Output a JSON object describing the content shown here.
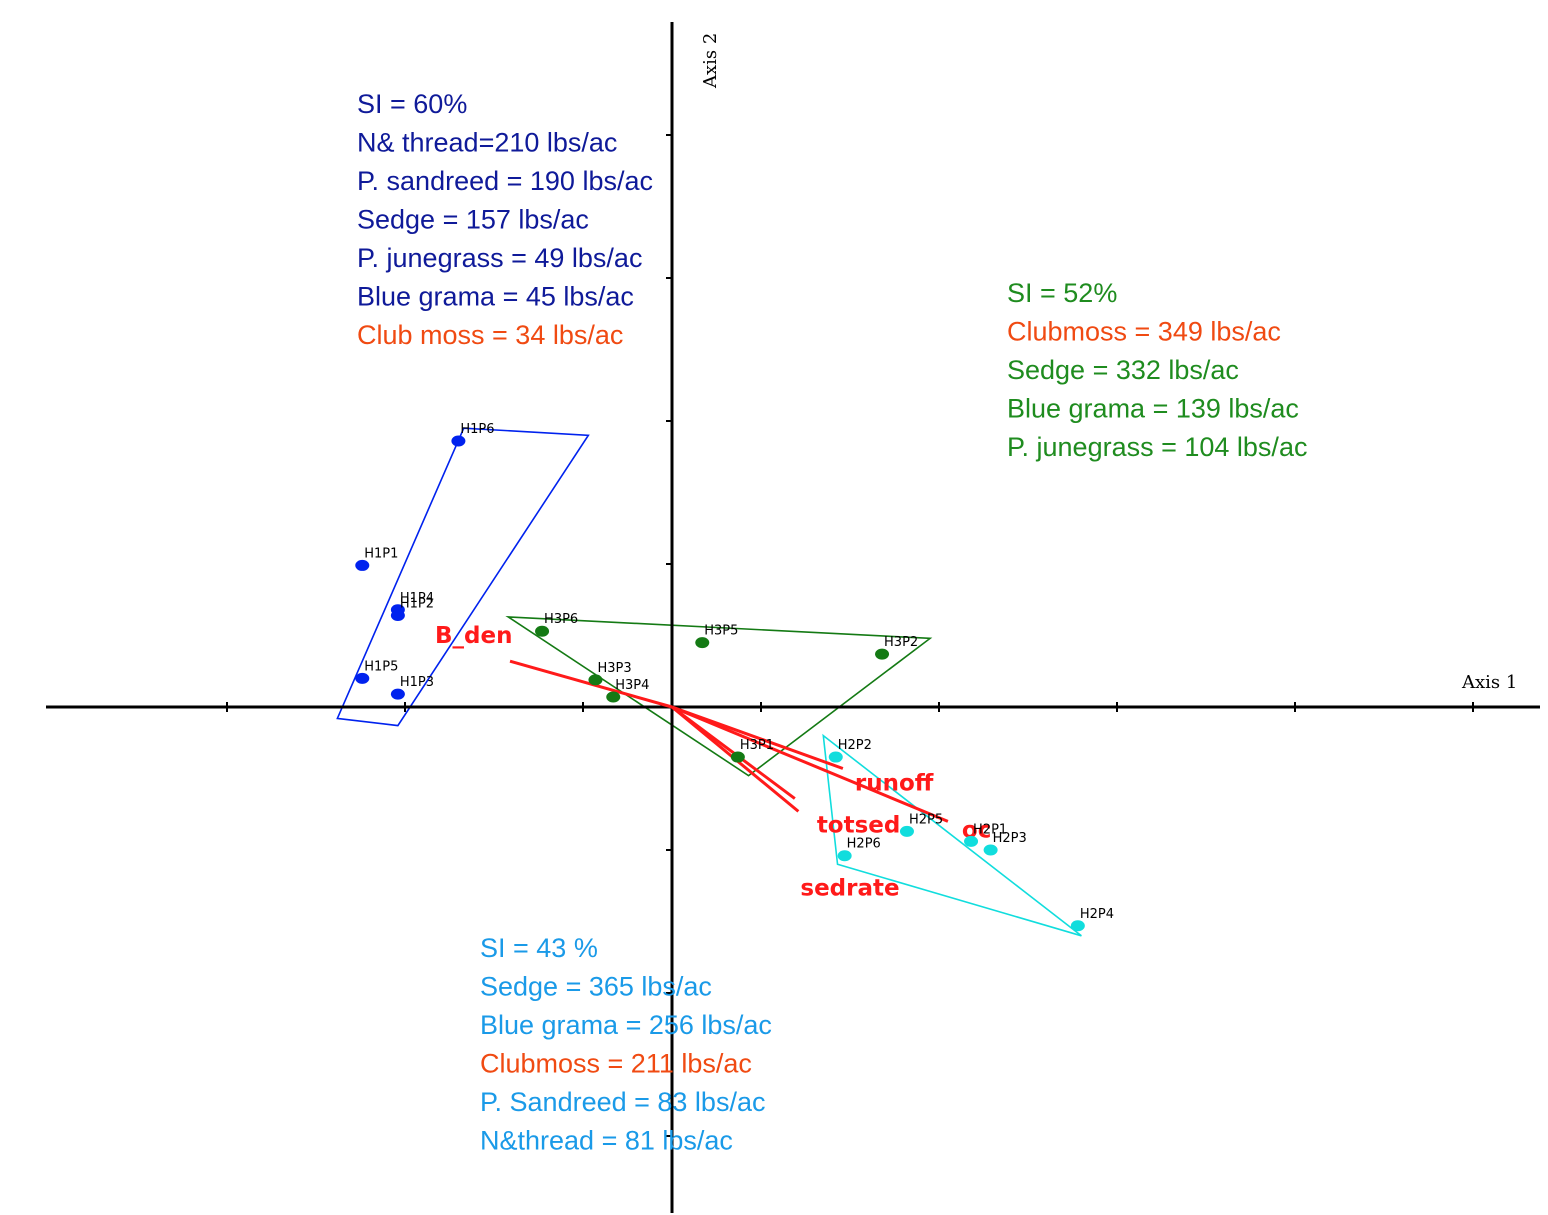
{
  "chart_data": {
    "type": "scatter",
    "x_axis_label": "Axis 1",
    "y_axis_label": "Axis 2",
    "xlim": [
      -1.75,
      2.3
    ],
    "ylim": [
      -1.6,
      2.0
    ],
    "grid": false,
    "colors": {
      "H1": "#0022ee",
      "H2": "#11dddd",
      "H3": "#147a14",
      "vector": "#ff1a1a",
      "axis": "#000000"
    },
    "series": [
      {
        "group": "H1",
        "points": [
          {
            "label": "H1P6",
            "x": -1.2,
            "y": 1.86
          },
          {
            "label": "H1P1",
            "x": -1.74,
            "y": 0.99
          },
          {
            "label": "H1P4",
            "x": -1.54,
            "y": 0.68
          },
          {
            "label": "H1P2",
            "x": -1.54,
            "y": 0.64
          },
          {
            "label": "H1P5",
            "x": -1.74,
            "y": 0.2
          },
          {
            "label": "H1P3",
            "x": -1.54,
            "y": 0.09
          }
        ]
      },
      {
        "group": "H2",
        "points": [
          {
            "label": "H2P2",
            "x": 0.92,
            "y": -0.35
          },
          {
            "label": "H2P5",
            "x": 1.32,
            "y": -0.87
          },
          {
            "label": "H2P1",
            "x": 1.68,
            "y": -0.94
          },
          {
            "label": "H2P3",
            "x": 1.79,
            "y": -1.0
          },
          {
            "label": "H2P6",
            "x": 0.97,
            "y": -1.04
          },
          {
            "label": "H2P4",
            "x": 2.28,
            "y": -1.53
          }
        ]
      },
      {
        "group": "H3",
        "points": [
          {
            "label": "H3P6",
            "x": -0.73,
            "y": 0.53
          },
          {
            "label": "H3P5",
            "x": 0.17,
            "y": 0.45
          },
          {
            "label": "H3P2",
            "x": 1.18,
            "y": 0.37
          },
          {
            "label": "H3P3",
            "x": -0.43,
            "y": 0.19
          },
          {
            "label": "H3P4",
            "x": -0.33,
            "y": 0.07
          },
          {
            "label": "H3P1",
            "x": 0.37,
            "y": -0.35
          }
        ]
      }
    ],
    "hulls": [
      {
        "group": "H1",
        "polygon": [
          [
            -1.17,
            1.95
          ],
          [
            -0.47,
            1.9
          ],
          [
            -1.54,
            -0.13
          ],
          [
            -1.88,
            -0.08
          ]
        ]
      },
      {
        "group": "H3",
        "polygon": [
          [
            -0.92,
            0.63
          ],
          [
            1.45,
            0.48
          ],
          [
            0.43,
            -0.48
          ]
        ]
      },
      {
        "group": "H2",
        "polygon": [
          [
            0.85,
            -0.2
          ],
          [
            2.3,
            -1.6
          ],
          [
            0.93,
            -1.1
          ]
        ]
      }
    ],
    "vectors": [
      {
        "label": "B_den",
        "x": -0.91,
        "y": 0.32
      },
      {
        "label": "runoff",
        "x": 0.96,
        "y": -0.43
      },
      {
        "label": "totsed",
        "x": 0.69,
        "y": -0.64
      },
      {
        "label": "sedrate",
        "x": 0.71,
        "y": -0.73
      },
      {
        "label": "oc",
        "x": 1.55,
        "y": -0.8
      }
    ]
  },
  "annotations": {
    "h1": {
      "color": "#0f1a99",
      "lines": [
        {
          "text": "SI = 60%",
          "color": "#0f1a99"
        },
        {
          "text": "N& thread=210 lbs/ac",
          "color": "#0f1a99"
        },
        {
          "text": "P. sandreed = 190 lbs/ac",
          "color": "#0f1a99"
        },
        {
          "text": "Sedge = 157 lbs/ac",
          "color": "#0f1a99"
        },
        {
          "text": "P. junegrass = 49 lbs/ac",
          "color": "#0f1a99"
        },
        {
          "text": "Blue grama = 45 lbs/ac",
          "color": "#0f1a99"
        },
        {
          "text": "Club moss = 34 lbs/ac",
          "color": "#f04a12"
        }
      ]
    },
    "h3": {
      "lines": [
        {
          "text": "SI = 52%",
          "color": "#1f8c1f"
        },
        {
          "text": "Clubmoss = 349 lbs/ac",
          "color": "#f04a12"
        },
        {
          "text": "Sedge = 332 lbs/ac",
          "color": "#1f8c1f"
        },
        {
          "text": "Blue grama = 139 lbs/ac",
          "color": "#1f8c1f"
        },
        {
          "text": "P. junegrass = 104 lbs/ac",
          "color": "#1f8c1f"
        }
      ]
    },
    "h2": {
      "lines": [
        {
          "text": "SI = 43 %",
          "color": "#1a9ae8"
        },
        {
          "text": "Sedge = 365 lbs/ac",
          "color": "#1a9ae8"
        },
        {
          "text": "Blue grama = 256 lbs/ac",
          "color": "#1a9ae8"
        },
        {
          "text": "Clubmoss = 211 lbs/ac",
          "color": "#f04a12"
        },
        {
          "text": "P. Sandreed = 83 lbs/ac",
          "color": "#1a9ae8"
        },
        {
          "text": "N&thread = 81 lbs/ac",
          "color": "#1a9ae8"
        }
      ]
    }
  }
}
